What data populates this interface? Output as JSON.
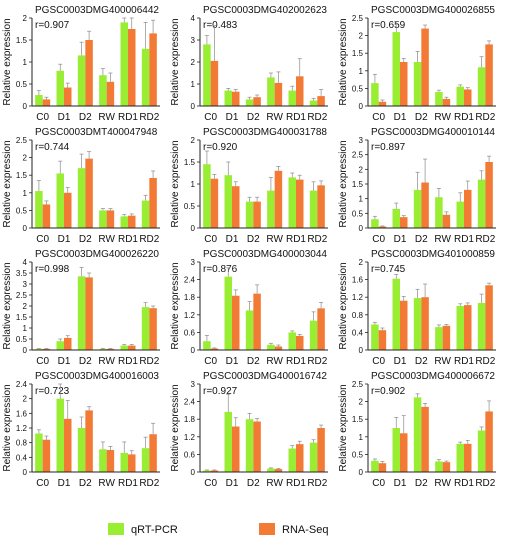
{
  "colors": {
    "qrt": "#99ee33",
    "rna": "#f27a35",
    "axis": "#222222"
  },
  "legend": {
    "qrt_label": "qRT-PCR",
    "rna_label": "RNA-Seq"
  },
  "ylabel": "Relative expression",
  "chart_data": [
    {
      "type": "bar",
      "title": "PGSC0003DMG400006442",
      "annotation": "r=0.907",
      "categories": [
        "C0",
        "D1",
        "D2",
        "RW",
        "RD1",
        "RD2"
      ],
      "ylim": [
        0,
        2
      ],
      "yticks": [
        "0",
        "0.5",
        "1",
        "1.5",
        "2"
      ],
      "series": [
        {
          "name": "qRT-PCR",
          "values": [
            0.25,
            0.8,
            1.15,
            0.7,
            1.9,
            1.3
          ],
          "errors": [
            0.1,
            0.15,
            0.3,
            0.15,
            0.5,
            0.6
          ]
        },
        {
          "name": "RNA-Seq",
          "values": [
            0.15,
            0.42,
            1.5,
            0.55,
            1.75,
            1.65
          ],
          "errors": [
            0.05,
            0.1,
            0.2,
            0.2,
            0.3,
            0.3
          ]
        }
      ]
    },
    {
      "type": "bar",
      "title": "PGSC0003DMG402002623",
      "annotation": "r=0.483",
      "categories": [
        "C0",
        "D1",
        "D2",
        "RW",
        "RD1",
        "RD2"
      ],
      "ylim": [
        0,
        4
      ],
      "yticks": [
        "0",
        "1",
        "2",
        "3",
        "4"
      ],
      "series": [
        {
          "name": "qRT-PCR",
          "values": [
            2.8,
            0.7,
            0.3,
            1.3,
            0.7,
            0.25
          ],
          "errors": [
            0.4,
            0.1,
            0.1,
            0.2,
            0.2,
            0.1
          ]
        },
        {
          "name": "RNA-Seq",
          "values": [
            2.05,
            0.65,
            0.4,
            1.05,
            1.35,
            0.45
          ],
          "errors": [
            1.6,
            0.1,
            0.1,
            0.5,
            0.8,
            0.3
          ]
        }
      ]
    },
    {
      "type": "bar",
      "title": "PGSC0003DMG400026855",
      "annotation": "r=0.659",
      "categories": [
        "C0",
        "D1",
        "D2",
        "RW",
        "RD1",
        "RD2"
      ],
      "ylim": [
        0,
        2.5
      ],
      "yticks": [
        "0",
        "0.5",
        "1",
        "1.5",
        "2",
        "2.5"
      ],
      "series": [
        {
          "name": "qRT-PCR",
          "values": [
            0.65,
            2.1,
            1.25,
            0.4,
            0.55,
            1.1
          ],
          "errors": [
            0.25,
            0.3,
            0.3,
            0.05,
            0.05,
            0.3
          ]
        },
        {
          "name": "RNA-Seq",
          "values": [
            0.12,
            1.25,
            2.2,
            0.2,
            0.47,
            1.75
          ],
          "errors": [
            0.05,
            0.1,
            0.1,
            0.05,
            0.05,
            0.1
          ]
        }
      ]
    },
    {
      "type": "bar",
      "title": "PGSC0003DMT400047948",
      "annotation": "r=0.744",
      "categories": [
        "C0",
        "D1",
        "D2",
        "RW",
        "RD1",
        "RD2"
      ],
      "ylim": [
        0,
        2.5
      ],
      "yticks": [
        "0",
        "0.5",
        "1",
        "1.5",
        "2",
        "2.5"
      ],
      "series": [
        {
          "name": "qRT-PCR",
          "values": [
            1.05,
            1.55,
            1.7,
            0.5,
            0.33,
            0.78
          ],
          "errors": [
            0.3,
            0.35,
            0.4,
            0.05,
            0.05,
            0.15
          ]
        },
        {
          "name": "RNA-Seq",
          "values": [
            0.67,
            1.0,
            1.97,
            0.5,
            0.35,
            1.42
          ],
          "errors": [
            0.1,
            0.15,
            0.2,
            0.05,
            0.05,
            0.2
          ]
        }
      ]
    },
    {
      "type": "bar",
      "title": "PGSC0003DMG400031788",
      "annotation": "r=0.920",
      "categories": [
        "C0",
        "D1",
        "D2",
        "RW",
        "RD1",
        "RD2"
      ],
      "ylim": [
        0,
        2
      ],
      "yticks": [
        "0",
        "0.5",
        "1",
        "1.5",
        "2"
      ],
      "series": [
        {
          "name": "qRT-PCR",
          "values": [
            1.45,
            1.2,
            0.6,
            0.85,
            1.15,
            0.85
          ],
          "errors": [
            0.3,
            0.3,
            0.1,
            0.3,
            0.1,
            0.2
          ]
        },
        {
          "name": "RNA-Seq",
          "values": [
            1.12,
            0.95,
            0.6,
            1.3,
            1.1,
            0.97
          ],
          "errors": [
            0.1,
            0.1,
            0.1,
            0.1,
            0.1,
            0.1
          ]
        }
      ]
    },
    {
      "type": "bar",
      "title": "PGSC0003DMG400010144",
      "annotation": "r=0.897",
      "categories": [
        "C0",
        "D1",
        "D2",
        "RW",
        "RD1",
        "RD2"
      ],
      "ylim": [
        0,
        3
      ],
      "yticks": [
        "0",
        "0.5",
        "1",
        "1.5",
        "2",
        "2.5",
        "3"
      ],
      "series": [
        {
          "name": "qRT-PCR",
          "values": [
            0.3,
            0.65,
            1.3,
            1.05,
            0.9,
            1.65
          ],
          "errors": [
            0.1,
            0.2,
            0.6,
            0.3,
            0.3,
            0.3
          ]
        },
        {
          "name": "RNA-Seq",
          "values": [
            0.05,
            0.37,
            1.55,
            0.45,
            1.3,
            2.25
          ],
          "errors": [
            0.02,
            0.05,
            0.8,
            0.1,
            0.3,
            0.2
          ]
        }
      ]
    },
    {
      "type": "bar",
      "title": "PGSC0003DMG400026220",
      "annotation": "r=0.998",
      "categories": [
        "C0",
        "D1",
        "D2",
        "RW",
        "RD1",
        "RD2"
      ],
      "ylim": [
        0,
        4
      ],
      "yticks": [
        "0",
        "0.5",
        "1",
        "1.5",
        "2",
        "2.5",
        "3",
        "3.5",
        "4"
      ],
      "series": [
        {
          "name": "qRT-PCR",
          "values": [
            0.05,
            0.4,
            3.35,
            0.05,
            0.2,
            1.95
          ],
          "errors": [
            0.02,
            0.1,
            0.4,
            0.02,
            0.05,
            0.2
          ]
        },
        {
          "name": "RNA-Seq",
          "values": [
            0.05,
            0.55,
            3.3,
            0.05,
            0.2,
            1.9
          ],
          "errors": [
            0.02,
            0.1,
            0.2,
            0.02,
            0.05,
            0.1
          ]
        }
      ]
    },
    {
      "type": "bar",
      "title": "PGSC0003DMG400003044",
      "annotation": "r=0.876",
      "categories": [
        "C0",
        "D1",
        "D2",
        "RW",
        "RD1",
        "RD2"
      ],
      "ylim": [
        0,
        3
      ],
      "yticks": [
        "0",
        "0.6",
        "1.2",
        "1.8",
        "2.4",
        "3"
      ],
      "series": [
        {
          "name": "qRT-PCR",
          "values": [
            0.3,
            2.5,
            1.35,
            0.18,
            0.6,
            1.0
          ],
          "errors": [
            0.2,
            0.3,
            0.3,
            0.05,
            0.05,
            0.3
          ]
        },
        {
          "name": "RNA-Seq",
          "values": [
            0.05,
            1.85,
            1.92,
            0.12,
            0.48,
            1.42
          ],
          "errors": [
            0.02,
            0.2,
            0.3,
            0.05,
            0.05,
            0.2
          ]
        }
      ]
    },
    {
      "type": "bar",
      "title": "PGSC0003DMG401000859",
      "annotation": "r=0.745",
      "categories": [
        "C0",
        "D1",
        "D2",
        "RW",
        "RD1",
        "RD2"
      ],
      "ylim": [
        0,
        2
      ],
      "yticks": [
        "0",
        "0.4",
        "0.8",
        "1.2",
        "1.6",
        "2"
      ],
      "series": [
        {
          "name": "qRT-PCR",
          "values": [
            0.58,
            1.62,
            1.18,
            0.52,
            1.0,
            1.07
          ],
          "errors": [
            0.05,
            0.1,
            0.2,
            0.05,
            0.05,
            0.2
          ]
        },
        {
          "name": "RNA-Seq",
          "values": [
            0.45,
            1.12,
            1.2,
            0.55,
            1.02,
            1.47
          ],
          "errors": [
            0.05,
            0.1,
            0.3,
            0.03,
            0.05,
            0.05
          ]
        }
      ]
    },
    {
      "type": "bar",
      "title": "PGSC0003DMG400016003",
      "annotation": "r=0.723",
      "categories": [
        "C0",
        "D1",
        "D2",
        "RW",
        "RD1",
        "RD2"
      ],
      "ylim": [
        0,
        2.4
      ],
      "yticks": [
        "0",
        "0.4",
        "0.8",
        "1.2",
        "1.6",
        "2",
        "2.4"
      ],
      "series": [
        {
          "name": "qRT-PCR",
          "values": [
            1.05,
            2.0,
            1.2,
            0.62,
            0.52,
            0.65
          ],
          "errors": [
            0.1,
            0.4,
            0.3,
            0.2,
            0.3,
            0.3
          ]
        },
        {
          "name": "RNA-Seq",
          "values": [
            0.88,
            1.45,
            1.68,
            0.6,
            0.48,
            1.03
          ],
          "errors": [
            0.1,
            0.5,
            0.1,
            0.1,
            0.1,
            0.3
          ]
        }
      ]
    },
    {
      "type": "bar",
      "title": "PGSC0003DMG400016742",
      "annotation": "r=0.927",
      "categories": [
        "C0",
        "D1",
        "D2",
        "RW",
        "RD1",
        "RD2"
      ],
      "ylim": [
        0,
        3
      ],
      "yticks": [
        "0",
        "0.6",
        "1.2",
        "1.8",
        "2.4",
        "3"
      ],
      "series": [
        {
          "name": "qRT-PCR",
          "values": [
            0.05,
            2.05,
            1.8,
            0.12,
            0.8,
            1.0
          ],
          "errors": [
            0.02,
            0.6,
            0.2,
            0.02,
            0.1,
            0.1
          ]
        },
        {
          "name": "RNA-Seq",
          "values": [
            0.05,
            1.55,
            1.72,
            0.1,
            0.95,
            1.5
          ],
          "errors": [
            0.02,
            0.3,
            0.1,
            0.02,
            0.1,
            0.1
          ]
        }
      ]
    },
    {
      "type": "bar",
      "title": "PGSC0003DMG400006672",
      "annotation": "r=0.902",
      "categories": [
        "C0",
        "D1",
        "D2",
        "RW",
        "RD1",
        "RD2"
      ],
      "ylim": [
        0,
        2.5
      ],
      "yticks": [
        "0",
        "0.5",
        "1",
        "1.5",
        "2",
        "2.5"
      ],
      "series": [
        {
          "name": "qRT-PCR",
          "values": [
            0.32,
            1.25,
            2.12,
            0.3,
            0.8,
            1.18
          ],
          "errors": [
            0.05,
            0.3,
            0.1,
            0.05,
            0.05,
            0.1
          ]
        },
        {
          "name": "RNA-Seq",
          "values": [
            0.25,
            1.1,
            1.85,
            0.28,
            0.8,
            1.72
          ],
          "errors": [
            0.05,
            0.5,
            0.1,
            0.03,
            0.1,
            0.3
          ]
        }
      ]
    }
  ]
}
